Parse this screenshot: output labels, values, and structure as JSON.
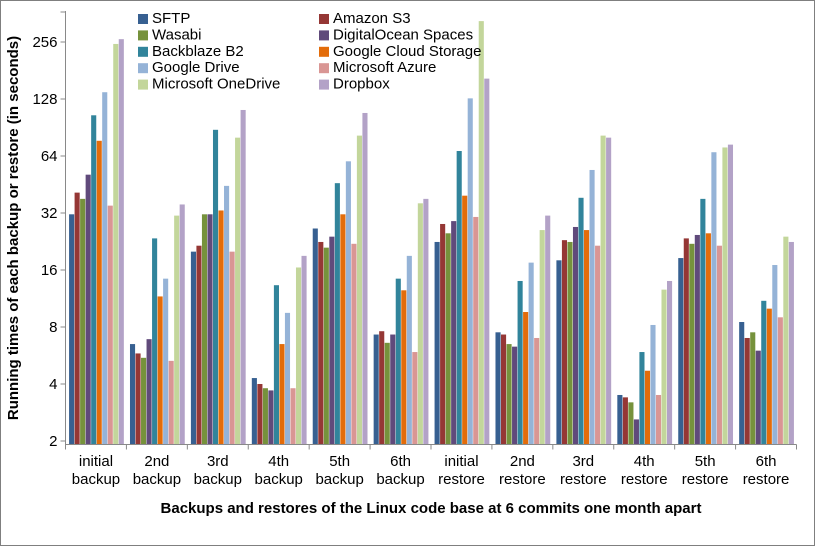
{
  "figure": {
    "y_axis_label": "Running times of each backup or restore (in seconds)",
    "x_axis_label": "Backups and restores of the Linux code base at 6 commits one month apart"
  },
  "chart_data": {
    "type": "bar",
    "title": "",
    "xlabel": "Backups and restores of the Linux code base at 6 commits one month apart",
    "ylabel": "Running times of each backup or restore (in seconds)",
    "y_scale": "log2",
    "y_ticks": [
      2,
      4,
      8,
      16,
      32,
      64,
      128,
      256
    ],
    "ylim": [
      2,
      384
    ],
    "grid": "off",
    "legend_position": "top",
    "legend_columns": 2,
    "categories": [
      "initial backup",
      "2nd backup",
      "3rd backup",
      "4th backup",
      "5th backup",
      "6th backup",
      "initial restore",
      "2nd restore",
      "3rd restore",
      "4th restore",
      "5th restore",
      "6th restore"
    ],
    "series": [
      {
        "name": "SFTP",
        "color": "#376091",
        "values": [
          31.5,
          6.5,
          20,
          4.3,
          26.5,
          7.3,
          22.5,
          7.5,
          18,
          3.5,
          18.5,
          8.5
        ]
      },
      {
        "name": "Amazon S3",
        "color": "#953735",
        "values": [
          41,
          5.8,
          21.5,
          4.0,
          22.5,
          7.6,
          28,
          7.3,
          23,
          3.4,
          23.5,
          7.0
        ]
      },
      {
        "name": "Wasabi",
        "color": "#76923C",
        "values": [
          38,
          5.5,
          31.5,
          3.8,
          21,
          6.6,
          25,
          6.5,
          22.5,
          3.2,
          22,
          7.5
        ]
      },
      {
        "name": "DigitalOcean Spaces",
        "color": "#604A7B",
        "values": [
          51,
          6.9,
          31.5,
          3.7,
          24,
          7.3,
          29,
          6.3,
          27,
          2.6,
          24.5,
          6.0
        ]
      },
      {
        "name": "Backblaze B2",
        "color": "#31849B",
        "values": [
          105,
          23.5,
          88,
          13.3,
          46,
          14.4,
          68,
          14,
          38.5,
          5.9,
          38,
          11
        ]
      },
      {
        "name": "Google Cloud Storage",
        "color": "#E36C0A",
        "values": [
          77,
          11.6,
          33,
          6.5,
          31.5,
          12.5,
          39.5,
          9.6,
          26,
          4.7,
          25,
          10
        ]
      },
      {
        "name": "Google Drive",
        "color": "#95B3D7",
        "values": [
          139,
          14.4,
          44.5,
          9.5,
          60,
          19,
          129,
          17.5,
          54,
          8.2,
          67,
          17
        ]
      },
      {
        "name": "Microsoft Azure",
        "color": "#D99694",
        "values": [
          35,
          5.3,
          20,
          3.8,
          22,
          5.9,
          30.5,
          7.0,
          21.5,
          3.5,
          21.5,
          9.0
        ]
      },
      {
        "name": "Microsoft OneDrive",
        "color": "#C3D69B",
        "values": [
          250,
          31,
          80,
          16.5,
          82,
          36,
          330,
          26,
          82,
          12.6,
          71,
          24
        ]
      },
      {
        "name": "Dropbox",
        "color": "#B3A2C7",
        "values": [
          265,
          35.5,
          112,
          19,
          108,
          38,
          164,
          31,
          80,
          14,
          73.5,
          22.5
        ]
      }
    ]
  },
  "style": {
    "axis_color": "#898989",
    "text_color": "#000000",
    "background": "#ffffff",
    "border_color": "#7f7f7f"
  }
}
